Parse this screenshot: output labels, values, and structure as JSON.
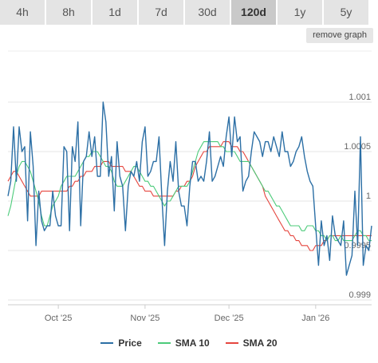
{
  "tabs": [
    {
      "label": "4h",
      "active": false
    },
    {
      "label": "8h",
      "active": false
    },
    {
      "label": "1d",
      "active": false
    },
    {
      "label": "7d",
      "active": false
    },
    {
      "label": "30d",
      "active": false
    },
    {
      "label": "120d",
      "active": true
    },
    {
      "label": "1y",
      "active": false
    },
    {
      "label": "5y",
      "active": false
    }
  ],
  "remove_graph_label": "remove graph",
  "colors": {
    "price": "#2c6fa5",
    "sma10": "#4ccb7a",
    "sma20": "#e5463f"
  },
  "chart_data": {
    "type": "line",
    "title": "",
    "xlabel": "",
    "ylabel": "",
    "ylim": [
      0.99895,
      1.00105
    ],
    "yticks": [
      0.999,
      0.9995,
      1,
      1.0005,
      1.001
    ],
    "ytick_labels": [
      "0.999",
      "0.9995",
      "1",
      "1.0005",
      "1.001"
    ],
    "xticks": [
      {
        "label": "Oct '25",
        "x": 18
      },
      {
        "label": "Nov '25",
        "x": 49
      },
      {
        "label": "Dec '25",
        "x": 79
      },
      {
        "label": "Jan '26",
        "x": 110
      }
    ],
    "xlim": [
      0,
      130
    ],
    "x": [
      0,
      1,
      2,
      3,
      4,
      5,
      6,
      7,
      8,
      9,
      10,
      11,
      12,
      13,
      14,
      15,
      16,
      17,
      18,
      19,
      20,
      21,
      22,
      23,
      24,
      25,
      26,
      27,
      28,
      29,
      30,
      31,
      32,
      33,
      34,
      35,
      36,
      37,
      38,
      39,
      40,
      41,
      42,
      43,
      44,
      45,
      46,
      47,
      48,
      49,
      50,
      51,
      52,
      53,
      54,
      55,
      56,
      57,
      58,
      59,
      60,
      61,
      62,
      63,
      64,
      65,
      66,
      67,
      68,
      69,
      70,
      71,
      72,
      73,
      74,
      75,
      76,
      77,
      78,
      79,
      80,
      81,
      82,
      83,
      84,
      85,
      86,
      87,
      88,
      89,
      90,
      91,
      92,
      93,
      94,
      95,
      96,
      97,
      98,
      99,
      100,
      101,
      102,
      103,
      104,
      105,
      106,
      107,
      108,
      109,
      110,
      111,
      112,
      113,
      114,
      115,
      116,
      117,
      118,
      119,
      120,
      121,
      122,
      123,
      124,
      125,
      126,
      127,
      128,
      129,
      130
    ],
    "series": [
      {
        "name": "Price",
        "values": [
          1.00005,
          1.0002,
          1.00075,
          1.0002,
          1.00075,
          1.0005,
          1.00055,
          0.9998,
          1.0007,
          1.00035,
          0.99955,
          1.0001,
          0.9998,
          0.9997,
          0.99975,
          0.99975,
          1.0001,
          0.99985,
          0.99975,
          0.99975,
          1.00055,
          1.0005,
          0.9997,
          1.00055,
          1.0004,
          1.0008,
          0.99975,
          1.0004,
          1.00045,
          1.0007,
          1.00045,
          1.00065,
          1.00025,
          1.00025,
          1.001,
          1.0008,
          1.00025,
          1.00045,
          0.9999,
          1.0006,
          1.00025,
          1.00015,
          0.9997,
          1.00015,
          1.0003,
          1.00025,
          1.0004,
          1.0002,
          1.0006,
          1.00075,
          1.00025,
          1.0003,
          1.0004,
          1.0004,
          1.00065,
          1.00005,
          0.99955,
          1.0001,
          1.0004,
          1.0002,
          1.0006,
          1.0001,
          0.99995,
          0.99995,
          0.99975,
          1.00015,
          1.0004,
          1.0004,
          1.0002,
          1.00025,
          1.0002,
          1.0004,
          1.0007,
          1.0002,
          1.00025,
          1.00035,
          1.00045,
          1.00035,
          1.00065,
          1.00085,
          1.00045,
          1.00085,
          1.0006,
          1.00065,
          1.0001,
          1.0002,
          1.00025,
          1.0005,
          1.0007,
          1.00065,
          1.0006,
          1.00045,
          1.0006,
          1.0006,
          1.0005,
          1.00065,
          1.00055,
          1.00045,
          1.0007,
          1.0005,
          1.0005,
          1.00035,
          1.0004,
          1.0005,
          1.00055,
          1.00065,
          1.00045,
          1.0003,
          1.0002,
          1.00015,
          0.99975,
          0.99935,
          0.9998,
          0.99955,
          0.99965,
          0.9994,
          0.99985,
          0.99965,
          0.9996,
          0.99955,
          0.9998,
          0.99925,
          0.99935,
          0.99945,
          1.0001,
          0.99955,
          1.00065,
          0.99935,
          0.99955,
          0.9995,
          0.99975
        ]
      },
      {
        "name": "SMA 10",
        "values": [
          0.99985,
          0.99995,
          1.0001,
          1.00025,
          1.00035,
          1.0004,
          1.0004,
          1.00035,
          1.0003,
          1.0002,
          1.0001,
          1.0,
          0.99985,
          0.99975,
          0.99975,
          0.99985,
          0.99995,
          1.0,
          1.00005,
          1.00015,
          1.0002,
          1.00025,
          1.00025,
          1.00025,
          1.00025,
          1.0003,
          1.00035,
          1.0004,
          1.00045,
          1.00045,
          1.0005,
          1.0005,
          1.0005,
          1.00045,
          1.0004,
          1.00035,
          1.00035,
          1.0003,
          1.0002,
          1.00015,
          1.00015,
          1.00015,
          1.0002,
          1.00025,
          1.0003,
          1.00035,
          1.00035,
          1.0003,
          1.00025,
          1.0002,
          1.0002,
          1.00015,
          1.00015,
          1.0001,
          1.00005,
          1.0,
          0.99995,
          1.0,
          1.0,
          1.00005,
          1.0001,
          1.00015,
          1.00015,
          1.00015,
          1.00015,
          1.0002,
          1.0003,
          1.0004,
          1.0005,
          1.00055,
          1.0006,
          1.0006,
          1.0006,
          1.0006,
          1.0006,
          1.0006,
          1.00055,
          1.00055,
          1.0005,
          1.0005,
          1.0005,
          1.0005,
          1.00045,
          1.0004,
          1.0004,
          1.0004,
          1.0004,
          1.00035,
          1.0003,
          1.00025,
          1.0002,
          1.00015,
          1.0001,
          1.0001,
          1.00005,
          1.0,
          0.99995,
          0.99995,
          0.9999,
          0.99985,
          0.9998,
          0.99975,
          0.99975,
          0.99975,
          0.99975,
          0.9997,
          0.9997,
          0.99975,
          0.99975,
          0.99975,
          0.9997,
          0.9997,
          0.99965,
          0.99965,
          0.9996,
          0.99965,
          0.99965,
          0.9996,
          0.9996,
          0.99965,
          0.9996,
          0.9996,
          0.9996,
          0.9996,
          0.99965,
          0.9997,
          0.9997,
          0.99965,
          0.99965,
          0.9996,
          0.9996
        ]
      },
      {
        "name": "SMA 20",
        "values": [
          1.0002,
          1.00025,
          1.0003,
          1.0003,
          1.00025,
          1.0002,
          1.00015,
          1.0001,
          1.00005,
          1.00005,
          1.00005,
          1.00005,
          1.0001,
          1.0001,
          1.0001,
          1.0001,
          1.0001,
          1.0001,
          1.0001,
          1.0001,
          1.0001,
          1.0001,
          1.00015,
          1.00015,
          1.0002,
          1.0002,
          1.00025,
          1.00025,
          1.0003,
          1.0003,
          1.0003,
          1.00035,
          1.00035,
          1.00035,
          1.0004,
          1.0004,
          1.0004,
          1.00035,
          1.00035,
          1.00035,
          1.00035,
          1.00035,
          1.0003,
          1.0003,
          1.0003,
          1.00025,
          1.0002,
          1.00015,
          1.00015,
          1.0001,
          1.0001,
          1.0001,
          1.00005,
          1.00005,
          1.00005,
          1.00005,
          1.00005,
          1.00005,
          1.00005,
          1.00005,
          1.0001,
          1.0001,
          1.00015,
          1.00015,
          1.0002,
          1.0002,
          1.00025,
          1.00035,
          1.0004,
          1.00045,
          1.0005,
          1.0005,
          1.00055,
          1.00055,
          1.00055,
          1.00055,
          1.00055,
          1.0006,
          1.0006,
          1.0006,
          1.00055,
          1.00055,
          1.00055,
          1.0005,
          1.0005,
          1.00045,
          1.0004,
          1.00035,
          1.0003,
          1.00025,
          1.0002,
          1.00015,
          1.00005,
          1.0,
          0.99995,
          0.9999,
          0.99985,
          0.9998,
          0.99975,
          0.9997,
          0.9997,
          0.99965,
          0.99965,
          0.9996,
          0.9996,
          0.99955,
          0.99955,
          0.99955,
          0.9995,
          0.9995,
          0.99955,
          0.99955,
          0.99955,
          0.9996,
          0.9996,
          0.99965,
          0.99965,
          0.99965,
          0.99965,
          0.99965,
          0.99965,
          0.99965,
          0.99965,
          0.99965,
          0.99965,
          0.99965,
          0.99965,
          0.99965,
          0.99965,
          0.99965,
          0.99965
        ]
      }
    ],
    "grid": true,
    "legend_position": "bottom"
  }
}
